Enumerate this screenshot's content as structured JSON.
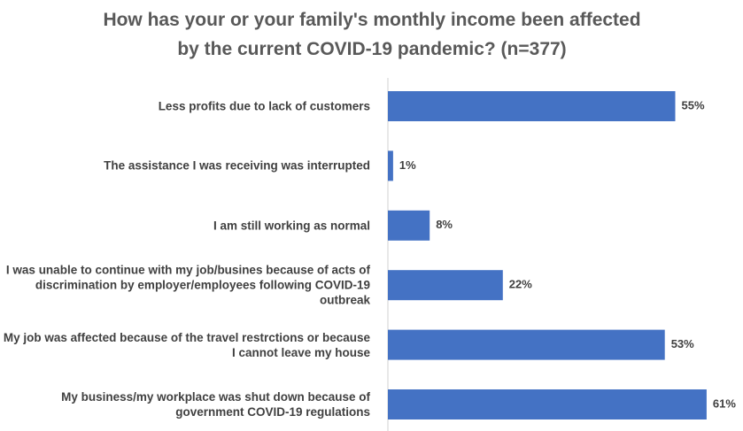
{
  "chart_data": {
    "type": "bar",
    "orientation": "horizontal",
    "title": "How has your or your family's monthly income been affected by the current COVID-19 pandemic? (n=377)",
    "categories": [
      "Less profits due to lack of customers",
      "The assistance I was receiving was interrupted",
      "I am still working as normal",
      "I was unable to continue with my job/busines because of acts of discrimination by employer/employees following COVID-19 outbreak",
      "My job was affected because of the travel restrctions or because I cannot leave my house",
      "My business/my workplace was shut down because of government COVID-19 regulations"
    ],
    "values": [
      55,
      1,
      8,
      22,
      53,
      61
    ],
    "value_labels": [
      "55%",
      "1%",
      "8%",
      "22%",
      "53%",
      "61%"
    ],
    "color": "#4472c4"
  }
}
